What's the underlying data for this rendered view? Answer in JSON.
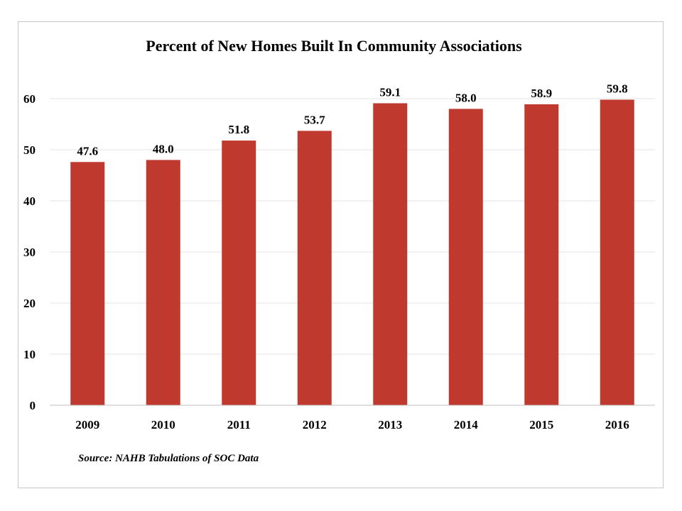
{
  "chart_data": {
    "type": "bar",
    "title": "Percent of New Homes Built In Community Associations",
    "categories": [
      "2009",
      "2010",
      "2011",
      "2012",
      "2013",
      "2014",
      "2015",
      "2016"
    ],
    "values": [
      47.6,
      48.0,
      51.8,
      53.7,
      59.1,
      58.0,
      58.9,
      59.8
    ],
    "data_labels": [
      "47.6",
      "48.0",
      "51.8",
      "53.7",
      "59.1",
      "58.0",
      "58.9",
      "59.8"
    ],
    "ylim": [
      0,
      60
    ],
    "yticks": [
      "0",
      "10",
      "20",
      "30",
      "40",
      "50",
      "60"
    ],
    "xlabel": "",
    "ylabel": "",
    "bar_color": "#c0392f",
    "grid": true,
    "legend": "none"
  },
  "source": "Source: NAHB Tabulations of SOC Data"
}
